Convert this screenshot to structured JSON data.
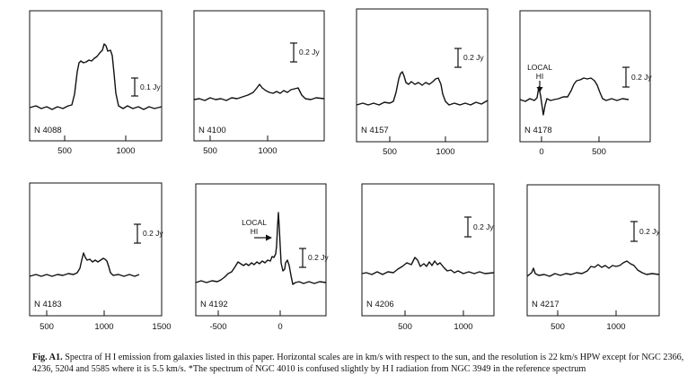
{
  "panels": [
    {
      "label": "N 4088",
      "ticks": [
        "500",
        "1000"
      ],
      "scale": "0.1 Jy",
      "local": ""
    },
    {
      "label": "N 4100",
      "ticks": [
        "500",
        "1000"
      ],
      "scale": "0.2 Jy",
      "local": ""
    },
    {
      "label": "N 4157",
      "ticks": [
        "500",
        "1000"
      ],
      "scale": "0.2 Jy",
      "local": ""
    },
    {
      "label": "N 4178",
      "ticks": [
        "0",
        "500"
      ],
      "scale": "0.2 Jy",
      "local": "LOCAL HI"
    },
    {
      "label": "N 4183",
      "ticks": [
        "500",
        "1000",
        "1500"
      ],
      "scale": "0.2 Jy",
      "local": ""
    },
    {
      "label": "N 4192",
      "ticks": [
        "-500",
        "0"
      ],
      "scale": "0.2 Jy",
      "local": "LOCAL HI"
    },
    {
      "label": "N 4206",
      "ticks": [
        "500",
        "1000"
      ],
      "scale": "0.2 Jy",
      "local": ""
    },
    {
      "label": "N 4217",
      "ticks": [
        "500",
        "1000"
      ],
      "scale": "0.2 Jy",
      "local": ""
    }
  ],
  "caption": {
    "lead": "Fig. A1.",
    "text": "Spectra of H I emission from galaxies listed in this paper. Horizontal scales are in km/s with respect to the sun, and the resolution is 22 km/s HPW except for NGC 2366, 4236, 5204 and 5585 where it is 5.5 km/s. *The spectrum of NGC 4010 is confused slightly by H I radiation from NGC 3949 in the reference spectrum"
  }
}
